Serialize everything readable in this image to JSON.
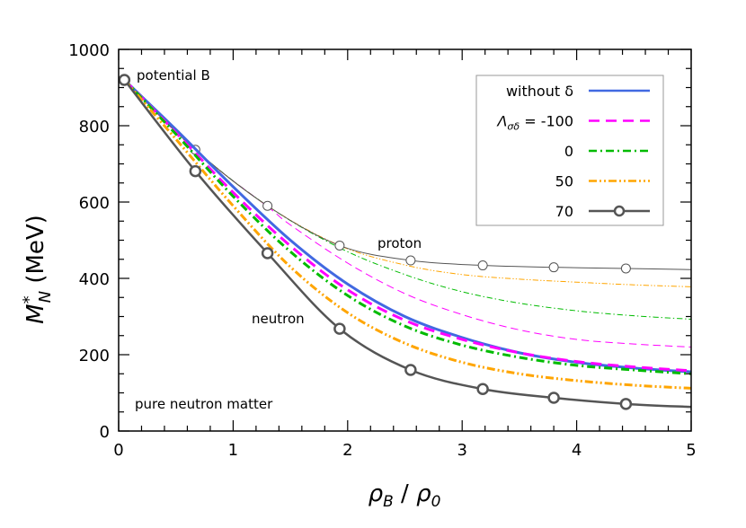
{
  "chart_data": {
    "type": "line",
    "xlabel": "ρB / ρ0",
    "ylabel": "M*N (MeV)",
    "xlim": [
      0,
      5
    ],
    "ylim": [
      0,
      1000
    ],
    "xticks": [
      "0",
      "1",
      "2",
      "3",
      "4",
      "5"
    ],
    "yticks": [
      "0",
      "200",
      "400",
      "600",
      "800",
      "1000"
    ],
    "grid": false,
    "legend_placement": "top-right",
    "annotations": {
      "potential": "potential B",
      "proton": "proton",
      "neutron": "neutron",
      "matter": "pure neutron matter"
    },
    "legend_title_symbol": "Λσδ =",
    "series": [
      {
        "name": "without δ",
        "color": "#4169e1",
        "style": "solid",
        "neutron": {
          "x": [
            0.05,
            0.5,
            1,
            1.5,
            2,
            2.5,
            3,
            3.5,
            4,
            4.5,
            5
          ],
          "y": [
            920,
            790,
            640,
            500,
            385,
            300,
            245,
            205,
            180,
            165,
            155
          ]
        }
      },
      {
        "name": "-100",
        "color": "#ff00ff",
        "style": "dashed",
        "neutron": {
          "x": [
            0.05,
            0.5,
            1,
            1.5,
            2,
            2.5,
            3,
            3.5,
            4,
            4.5,
            5
          ],
          "y": [
            920,
            782,
            625,
            485,
            370,
            290,
            240,
            205,
            182,
            168,
            158
          ]
        },
        "proton": {
          "x": [
            0.05,
            0.67,
            1.3,
            1.5,
            2,
            2.5,
            3,
            3.5,
            4,
            4.5,
            5
          ],
          "y": [
            920,
            735,
            588,
            540,
            440,
            360,
            305,
            265,
            240,
            228,
            220
          ]
        }
      },
      {
        "name": "0",
        "color": "#00bb00",
        "style": "dashdot",
        "neutron": {
          "x": [
            0.05,
            0.5,
            1,
            1.5,
            2,
            2.5,
            3,
            3.5,
            4,
            4.5,
            5
          ],
          "y": [
            920,
            778,
            615,
            470,
            355,
            275,
            225,
            193,
            172,
            160,
            150
          ]
        },
        "proton": {
          "x": [
            0.05,
            0.67,
            1.3,
            1.93,
            2.5,
            3,
            3.5,
            4,
            4.5,
            5
          ],
          "y": [
            920,
            737,
            590,
            480,
            410,
            365,
            335,
            315,
            302,
            293
          ]
        }
      },
      {
        "name": "50",
        "color": "#ffa500",
        "style": "dashdotdot",
        "neutron": {
          "x": [
            0.05,
            0.5,
            1,
            1.5,
            2,
            2.5,
            3,
            3.5,
            4,
            4.5,
            5
          ],
          "y": [
            920,
            765,
            590,
            430,
            310,
            230,
            180,
            150,
            132,
            120,
            112
          ]
        },
        "proton": {
          "x": [
            0.05,
            0.67,
            1.3,
            1.93,
            2.5,
            3,
            3.5,
            4,
            4.5,
            5
          ],
          "y": [
            920,
            737,
            590,
            486,
            435,
            410,
            398,
            390,
            383,
            378
          ]
        }
      },
      {
        "name": "70",
        "color": "#555555",
        "style": "solid-marker",
        "neutron": {
          "x": [
            0.05,
            0.67,
            1.3,
            1.93,
            2.55,
            3.18,
            3.8,
            4.43,
            5
          ],
          "y": [
            920,
            681,
            466,
            268,
            160,
            110,
            87,
            71,
            63
          ]
        },
        "proton": {
          "x": [
            0.05,
            0.67,
            1.3,
            1.93,
            2.55,
            3.18,
            3.8,
            4.43,
            5
          ],
          "y": [
            920,
            737,
            590,
            486,
            447,
            434,
            429,
            426,
            423
          ]
        }
      }
    ]
  }
}
